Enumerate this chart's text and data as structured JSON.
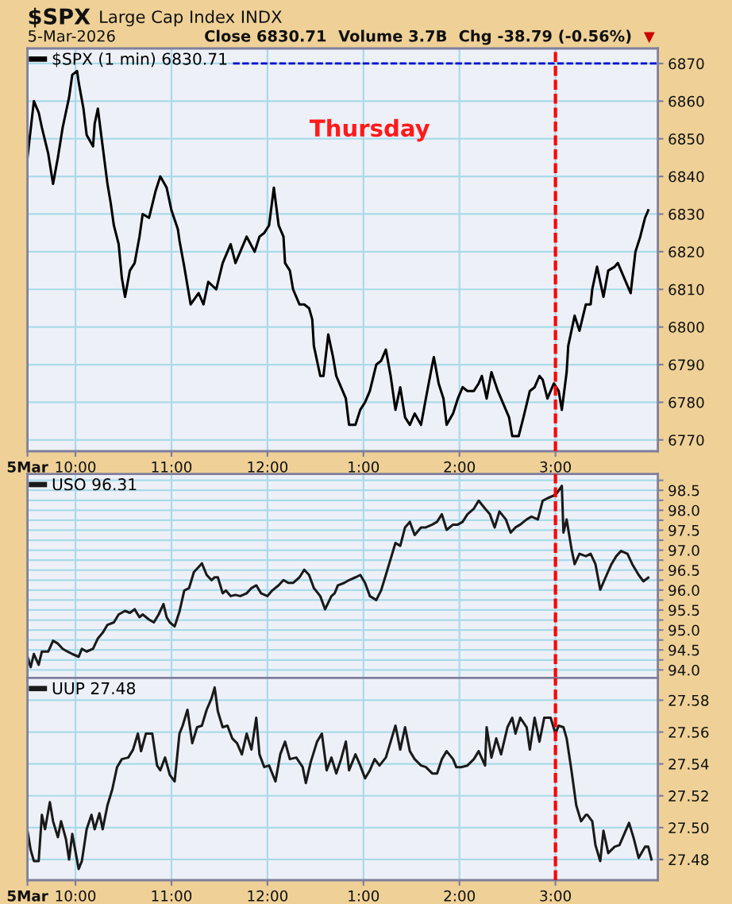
{
  "chart_data": [
    {
      "type": "line",
      "title": "$SPX",
      "subtitle": "Large Cap Index INDX",
      "annotations": [
        "5-Mar-2026",
        "Close 6830.71",
        "Volume 3.7B",
        "Chg -38.79 (-0.56%)",
        "▼",
        "Thursday"
      ],
      "x": [
        "2026-03-05T09:30",
        "2026-03-05T09:34",
        "2026-03-05T09:37",
        "2026-03-05T09:39",
        "2026-03-05T09:43",
        "2026-03-05T09:46",
        "2026-03-05T09:49",
        "2026-03-05T09:52",
        "2026-03-05T09:56",
        "2026-03-05T09:58",
        "2026-03-05T10:01",
        "2026-03-05T10:02",
        "2026-03-05T10:05",
        "2026-03-05T10:07",
        "2026-03-05T10:11",
        "2026-03-05T10:12",
        "2026-03-05T10:14",
        "2026-03-05T10:17",
        "2026-03-05T10:20",
        "2026-03-05T10:22",
        "2026-03-05T10:24",
        "2026-03-05T10:27",
        "2026-03-05T10:29",
        "2026-03-05T10:31",
        "2026-03-05T10:34",
        "2026-03-05T10:37",
        "2026-03-05T10:40",
        "2026-03-05T10:42",
        "2026-03-05T10:46",
        "2026-03-05T10:50",
        "2026-03-05T10:53",
        "2026-03-05T10:57",
        "2026-03-05T11:00",
        "2026-03-05T11:04",
        "2026-03-05T11:05",
        "2026-03-05T11:08",
        "2026-03-05T11:12",
        "2026-03-05T11:17",
        "2026-03-05T11:20",
        "2026-03-05T11:23",
        "2026-03-05T11:28",
        "2026-03-05T11:32",
        "2026-03-05T11:37",
        "2026-03-05T11:40",
        "2026-03-05T11:43",
        "2026-03-05T11:47",
        "2026-03-05T11:52",
        "2026-03-05T11:55",
        "2026-03-05T11:58",
        "2026-03-05T12:01",
        "2026-03-05T12:04",
        "2026-03-05T12:07",
        "2026-03-05T12:10",
        "2026-03-05T12:11",
        "2026-03-05T12:14",
        "2026-03-05T12:16",
        "2026-03-05T12:20",
        "2026-03-05T12:23",
        "2026-03-05T12:26",
        "2026-03-05T12:28",
        "2026-03-05T12:29",
        "2026-03-05T12:33",
        "2026-03-05T12:35",
        "2026-03-05T12:38",
        "2026-03-05T12:41",
        "2026-03-05T12:43",
        "2026-03-05T12:46",
        "2026-03-05T12:49",
        "2026-03-05T12:51",
        "2026-03-05T12:55",
        "2026-03-05T12:58",
        "2026-03-05T13:01",
        "2026-03-05T13:04",
        "2026-03-05T13:08",
        "2026-03-05T13:11",
        "2026-03-05T13:14",
        "2026-03-05T13:17",
        "2026-03-05T13:20",
        "2026-03-05T13:23",
        "2026-03-05T13:26",
        "2026-03-05T13:29",
        "2026-03-05T13:32",
        "2026-03-05T13:36",
        "2026-03-05T13:39",
        "2026-03-05T13:43",
        "2026-03-05T13:44",
        "2026-03-05T13:47",
        "2026-03-05T13:50",
        "2026-03-05T13:52",
        "2026-03-05T13:56",
        "2026-03-05T13:59",
        "2026-03-05T14:02",
        "2026-03-05T14:05",
        "2026-03-05T14:09",
        "2026-03-05T14:12",
        "2026-03-05T14:14",
        "2026-03-05T14:17",
        "2026-03-05T14:20",
        "2026-03-05T14:24",
        "2026-03-05T14:27",
        "2026-03-05T14:31",
        "2026-03-05T14:33",
        "2026-03-05T14:37",
        "2026-03-05T14:40",
        "2026-03-05T14:44",
        "2026-03-05T14:47",
        "2026-03-05T14:50",
        "2026-03-05T14:52",
        "2026-03-05T14:55",
        "2026-03-05T14:59",
        "2026-03-05T15:02",
        "2026-03-05T15:04",
        "2026-03-05T15:07",
        "2026-03-05T15:08",
        "2026-03-05T15:12",
        "2026-03-05T15:15",
        "2026-03-05T15:19",
        "2026-03-05T15:22",
        "2026-03-05T15:23",
        "2026-03-05T15:26",
        "2026-03-05T15:30",
        "2026-03-05T15:33",
        "2026-03-05T15:37",
        "2026-03-05T15:39",
        "2026-03-05T15:43",
        "2026-03-05T15:47",
        "2026-03-05T15:50",
        "2026-03-05T15:53",
        "2026-03-05T15:56",
        "2026-03-05T15:58"
      ],
      "series": [
        {
          "name": "$SPX (1 min) 6830.71",
          "color": "#000000",
          "values": [
            6845,
            6860,
            6857,
            6853,
            6846,
            6838,
            6845,
            6853,
            6861,
            6867,
            6868,
            6865,
            6858,
            6851,
            6848,
            6854,
            6858,
            6848,
            6838,
            6833,
            6827,
            6822,
            6813,
            6808,
            6815,
            6817,
            6824,
            6830,
            6829,
            6836,
            6840,
            6837,
            6831,
            6826,
            6823,
            6816,
            6806,
            6809,
            6806,
            6812,
            6810,
            6817,
            6822,
            6817,
            6820,
            6824,
            6820,
            6824,
            6825,
            6827,
            6837,
            6827,
            6824,
            6817,
            6815,
            6810,
            6806,
            6806,
            6805,
            6802,
            6795,
            6787,
            6787,
            6798,
            6792,
            6787,
            6784,
            6781,
            6774,
            6774,
            6778,
            6780,
            6783,
            6790,
            6791,
            6794,
            6787,
            6778,
            6784,
            6776,
            6774,
            6777,
            6774,
            6781,
            6790,
            6792,
            6785,
            6781,
            6774,
            6777,
            6781,
            6784,
            6783,
            6783,
            6785,
            6787,
            6781,
            6788,
            6783,
            6780,
            6776,
            6771,
            6771,
            6776,
            6783,
            6784,
            6787,
            6786,
            6781,
            6785,
            6783,
            6778,
            6788,
            6795,
            6803,
            6799,
            6806,
            6806,
            6810,
            6816,
            6808,
            6815,
            6816,
            6817,
            6813,
            6809,
            6820,
            6824,
            6829,
            6831
          ]
        }
      ],
      "xlim": [
        "2026-03-05T09:30",
        "2026-03-05T16:04"
      ],
      "ylim": [
        6767,
        6874
      ],
      "xticks": [
        {
          "value": "2026-03-05T09:30",
          "label": "5Mar"
        },
        {
          "value": "2026-03-05T10:00",
          "label": "10:00"
        },
        {
          "value": "2026-03-05T11:00",
          "label": "11:00"
        },
        {
          "value": "2026-03-05T12:00",
          "label": "12:00"
        },
        {
          "value": "2026-03-05T13:00",
          "label": "1:00"
        },
        {
          "value": "2026-03-05T14:00",
          "label": "2:00"
        },
        {
          "value": "2026-03-05T15:00",
          "label": "3:00"
        }
      ],
      "yticks": [
        6770,
        6780,
        6790,
        6800,
        6810,
        6820,
        6830,
        6840,
        6850,
        6860,
        6870
      ],
      "grid": true,
      "legend": "top left",
      "ref_lines": [
        {
          "axis": "x",
          "value": "2026-03-05T15:00",
          "color": "#ff0000",
          "line_style": "dashed"
        },
        {
          "axis": "y",
          "value": 6870,
          "color": "#0000cc",
          "line_style": "dashed"
        }
      ]
    },
    {
      "type": "line",
      "x": [
        "2026-03-05T09:30",
        "2026-03-05T09:32",
        "2026-03-05T09:34",
        "2026-03-05T09:37",
        "2026-03-05T09:39",
        "2026-03-05T09:43",
        "2026-03-05T09:46",
        "2026-03-05T09:49",
        "2026-03-05T09:52",
        "2026-03-05T09:55",
        "2026-03-05T09:58",
        "2026-03-05T10:02",
        "2026-03-05T10:04",
        "2026-03-05T10:07",
        "2026-03-05T10:11",
        "2026-03-05T10:14",
        "2026-03-05T10:17",
        "2026-03-05T10:20",
        "2026-03-05T10:24",
        "2026-03-05T10:27",
        "2026-03-05T10:31",
        "2026-03-05T10:34",
        "2026-03-05T10:37",
        "2026-03-05T10:40",
        "2026-03-05T10:42",
        "2026-03-05T10:46",
        "2026-03-05T10:49",
        "2026-03-05T10:52",
        "2026-03-05T10:55",
        "2026-03-05T10:57",
        "2026-03-05T10:59",
        "2026-03-05T11:02",
        "2026-03-05T11:05",
        "2026-03-05T11:08",
        "2026-03-05T11:11",
        "2026-03-05T11:14",
        "2026-03-05T11:17",
        "2026-03-05T11:19",
        "2026-03-05T11:22",
        "2026-03-05T11:25",
        "2026-03-05T11:27",
        "2026-03-05T11:29",
        "2026-03-05T11:32",
        "2026-03-05T11:34",
        "2026-03-05T11:37",
        "2026-03-05T11:40",
        "2026-03-05T11:43",
        "2026-03-05T11:47",
        "2026-03-05T11:50",
        "2026-03-05T11:53",
        "2026-03-05T11:56",
        "2026-03-05T12:00",
        "2026-03-05T12:03",
        "2026-03-05T12:07",
        "2026-03-05T12:10",
        "2026-03-05T12:13",
        "2026-03-05T12:16",
        "2026-03-05T12:20",
        "2026-03-05T12:23",
        "2026-03-05T12:26",
        "2026-03-05T12:29",
        "2026-03-05T12:33",
        "2026-03-05T12:36",
        "2026-03-05T12:40",
        "2026-03-05T12:42",
        "2026-03-05T12:44",
        "2026-03-05T12:48",
        "2026-03-05T12:51",
        "2026-03-05T12:55",
        "2026-03-05T12:58",
        "2026-03-05T13:01",
        "2026-03-05T13:04",
        "2026-03-05T13:08",
        "2026-03-05T13:11",
        "2026-03-05T13:14",
        "2026-03-05T13:17",
        "2026-03-05T13:20",
        "2026-03-05T13:23",
        "2026-03-05T13:26",
        "2026-03-05T13:29",
        "2026-03-05T13:32",
        "2026-03-05T13:36",
        "2026-03-05T13:39",
        "2026-03-05T13:43",
        "2026-03-05T13:46",
        "2026-03-05T13:49",
        "2026-03-05T13:52",
        "2026-03-05T13:56",
        "2026-03-05T13:59",
        "2026-03-05T14:02",
        "2026-03-05T14:05",
        "2026-03-05T14:09",
        "2026-03-05T14:12",
        "2026-03-05T14:16",
        "2026-03-05T14:19",
        "2026-03-05T14:22",
        "2026-03-05T14:25",
        "2026-03-05T14:29",
        "2026-03-05T14:32",
        "2026-03-05T14:35",
        "2026-03-05T14:38",
        "2026-03-05T14:42",
        "2026-03-05T14:45",
        "2026-03-05T14:49",
        "2026-03-05T14:52",
        "2026-03-05T14:55",
        "2026-03-05T14:59",
        "2026-03-05T15:01",
        "2026-03-05T15:04",
        "2026-03-05T15:05",
        "2026-03-05T15:07",
        "2026-03-05T15:10",
        "2026-03-05T15:12",
        "2026-03-05T15:15",
        "2026-03-05T15:19",
        "2026-03-05T15:22",
        "2026-03-05T15:25",
        "2026-03-05T15:28",
        "2026-03-05T15:32",
        "2026-03-05T15:35",
        "2026-03-05T15:38",
        "2026-03-05T15:41",
        "2026-03-05T15:45",
        "2026-03-05T15:48",
        "2026-03-05T15:52",
        "2026-03-05T15:55",
        "2026-03-05T15:58"
      ],
      "series": [
        {
          "name": "USO 96.31",
          "color": "#1a1a1a",
          "values": [
            94.33,
            94.07,
            94.4,
            94.13,
            94.46,
            94.46,
            94.73,
            94.66,
            94.53,
            94.46,
            94.4,
            94.33,
            94.53,
            94.46,
            94.53,
            94.79,
            94.93,
            95.13,
            95.19,
            95.39,
            95.48,
            95.43,
            95.52,
            95.32,
            95.39,
            95.26,
            95.19,
            95.39,
            95.65,
            95.32,
            95.19,
            95.09,
            95.46,
            95.99,
            96.05,
            96.45,
            96.58,
            96.67,
            96.38,
            96.25,
            96.32,
            96.32,
            95.92,
            95.99,
            95.85,
            95.88,
            95.85,
            95.92,
            96.05,
            96.12,
            95.92,
            95.85,
            95.99,
            96.12,
            96.25,
            96.18,
            96.18,
            96.32,
            96.51,
            96.38,
            96.05,
            95.85,
            95.52,
            95.85,
            95.92,
            96.12,
            96.18,
            96.25,
            96.32,
            96.38,
            96.18,
            95.85,
            95.75,
            95.99,
            96.38,
            96.78,
            97.18,
            97.11,
            97.57,
            97.71,
            97.38,
            97.57,
            97.57,
            97.64,
            97.71,
            97.9,
            97.51,
            97.64,
            97.64,
            97.71,
            97.9,
            98.04,
            98.24,
            98.04,
            97.9,
            97.57,
            97.97,
            97.77,
            97.44,
            97.57,
            97.64,
            97.77,
            97.84,
            97.77,
            98.24,
            98.3,
            98.37,
            98.43,
            98.61,
            97.44,
            97.77,
            97.04,
            96.65,
            96.91,
            96.85,
            96.91,
            96.65,
            96.01,
            96.38,
            96.65,
            96.85,
            96.98,
            96.91,
            96.65,
            96.38,
            96.22,
            96.31
          ]
        }
      ],
      "xlim": [
        "2026-03-05T09:30",
        "2026-03-05T16:04"
      ],
      "ylim": [
        93.8,
        98.91
      ],
      "xticks": [
        {
          "value": "2026-03-05T09:30",
          "label": null
        },
        {
          "value": "2026-03-05T10:00",
          "label": null
        },
        {
          "value": "2026-03-05T11:00",
          "label": null
        },
        {
          "value": "2026-03-05T12:00",
          "label": null
        },
        {
          "value": "2026-03-05T13:00",
          "label": null
        },
        {
          "value": "2026-03-05T14:00",
          "label": null
        },
        {
          "value": "2026-03-05T15:00",
          "label": null
        }
      ],
      "yticks": [
        {
          "value": 94.0,
          "label": "94.0"
        },
        {
          "value": 94.25,
          "label": null
        },
        94.5,
        {
          "value": 94.75,
          "label": null
        },
        {
          "value": 95.0,
          "label": "95.0"
        },
        {
          "value": 95.25,
          "label": null
        },
        95.5,
        {
          "value": 95.75,
          "label": null
        },
        {
          "value": 96.0,
          "label": "96.0"
        },
        {
          "value": 96.25,
          "label": null
        },
        96.5,
        {
          "value": 96.75,
          "label": null
        },
        {
          "value": 97.0,
          "label": "97.0"
        },
        {
          "value": 97.25,
          "label": null
        },
        97.5,
        {
          "value": 97.75,
          "label": null
        },
        {
          "value": 98.0,
          "label": "98.0"
        },
        {
          "value": 98.25,
          "label": null
        },
        98.5,
        {
          "value": 98.75,
          "label": null
        }
      ],
      "tick_labels": "y",
      "grid": true,
      "legend": "top left",
      "ref_lines": [
        {
          "axis": "x",
          "value": "2026-03-05T15:00",
          "color": "#ff0000",
          "line_style": "dashed"
        }
      ]
    },
    {
      "type": "line",
      "x": [
        "2026-03-05T09:30",
        "2026-03-05T09:32",
        "2026-03-05T09:34",
        "2026-03-05T09:37",
        "2026-03-05T09:39",
        "2026-03-05T09:41",
        "2026-03-05T09:44",
        "2026-03-05T09:46",
        "2026-03-05T09:49",
        "2026-03-05T09:51",
        "2026-03-05T09:54",
        "2026-03-05T09:56",
        "2026-03-05T09:58",
        "2026-03-05T10:02",
        "2026-03-05T10:04",
        "2026-03-05T10:07",
        "2026-03-05T10:10",
        "2026-03-05T10:12",
        "2026-03-05T10:15",
        "2026-03-05T10:17",
        "2026-03-05T10:20",
        "2026-03-05T10:23",
        "2026-03-05T10:26",
        "2026-03-05T10:29",
        "2026-03-05T10:33",
        "2026-03-05T10:36",
        "2026-03-05T10:39",
        "2026-03-05T10:41",
        "2026-03-05T10:44",
        "2026-03-05T10:48",
        "2026-03-05T10:51",
        "2026-03-05T10:53",
        "2026-03-05T10:56",
        "2026-03-05T10:59",
        "2026-03-05T11:02",
        "2026-03-05T11:05",
        "2026-03-05T11:07",
        "2026-03-05T11:10",
        "2026-03-05T11:13",
        "2026-03-05T11:16",
        "2026-03-05T11:19",
        "2026-03-05T11:22",
        "2026-03-05T11:25",
        "2026-03-05T11:27",
        "2026-03-05T11:29",
        "2026-03-05T11:32",
        "2026-03-05T11:35",
        "2026-03-05T11:38",
        "2026-03-05T11:41",
        "2026-03-05T11:44",
        "2026-03-05T11:47",
        "2026-03-05T11:50",
        "2026-03-05T11:53",
        "2026-03-05T11:55",
        "2026-03-05T11:58",
        "2026-03-05T12:01",
        "2026-03-05T12:05",
        "2026-03-05T12:08",
        "2026-03-05T12:11",
        "2026-03-05T12:14",
        "2026-03-05T12:18",
        "2026-03-05T12:22",
        "2026-03-05T12:24",
        "2026-03-05T12:27",
        "2026-03-05T12:31",
        "2026-03-05T12:34",
        "2026-03-05T12:37",
        "2026-03-05T12:40",
        "2026-03-05T12:43",
        "2026-03-05T12:46",
        "2026-03-05T12:49",
        "2026-03-05T12:51",
        "2026-03-05T12:55",
        "2026-03-05T12:58",
        "2026-03-05T13:01",
        "2026-03-05T13:04",
        "2026-03-05T13:07",
        "2026-03-05T13:10",
        "2026-03-05T13:14",
        "2026-03-05T13:17",
        "2026-03-05T13:20",
        "2026-03-05T13:23",
        "2026-03-05T13:26",
        "2026-03-05T13:29",
        "2026-03-05T13:32",
        "2026-03-05T13:36",
        "2026-03-05T13:39",
        "2026-03-05T13:43",
        "2026-03-05T13:46",
        "2026-03-05T13:49",
        "2026-03-05T13:52",
        "2026-03-05T13:56",
        "2026-03-05T13:58",
        "2026-03-05T14:01",
        "2026-03-05T14:05",
        "2026-03-05T14:09",
        "2026-03-05T14:12",
        "2026-03-05T14:16",
        "2026-03-05T14:17",
        "2026-03-05T14:20",
        "2026-03-05T14:23",
        "2026-03-05T14:26",
        "2026-03-05T14:30",
        "2026-03-05T14:33",
        "2026-03-05T14:35",
        "2026-03-05T14:38",
        "2026-03-05T14:42",
        "2026-03-05T14:44",
        "2026-03-05T14:47",
        "2026-03-05T14:50",
        "2026-03-05T14:53",
        "2026-03-05T14:57",
        "2026-03-05T15:00",
        "2026-03-05T15:02",
        "2026-03-05T15:05",
        "2026-03-05T15:07",
        "2026-03-05T15:10",
        "2026-03-05T15:13",
        "2026-03-05T15:16",
        "2026-03-05T15:19",
        "2026-03-05T15:20",
        "2026-03-05T15:23",
        "2026-03-05T15:25",
        "2026-03-05T15:28",
        "2026-03-05T15:30",
        "2026-03-05T15:33",
        "2026-03-05T15:37",
        "2026-03-05T15:40",
        "2026-03-05T15:43",
        "2026-03-05T15:46",
        "2026-03-05T15:49",
        "2026-03-05T15:52",
        "2026-03-05T15:56",
        "2026-03-05T15:58",
        "2026-03-05T16:00"
      ],
      "series": [
        {
          "name": "UUP 27.48",
          "color": "#1a1a1a",
          "values": [
            27.498,
            27.486,
            27.479,
            27.479,
            27.508,
            27.499,
            27.516,
            27.504,
            27.494,
            27.504,
            27.493,
            27.48,
            27.496,
            27.474,
            27.479,
            27.499,
            27.508,
            27.499,
            27.509,
            27.499,
            27.514,
            27.524,
            27.538,
            27.543,
            27.544,
            27.549,
            27.559,
            27.548,
            27.559,
            27.559,
            27.539,
            27.536,
            27.544,
            27.533,
            27.529,
            27.559,
            27.564,
            27.574,
            27.553,
            27.563,
            27.564,
            27.574,
            27.581,
            27.588,
            27.573,
            27.563,
            27.564,
            27.556,
            27.553,
            27.546,
            27.559,
            27.549,
            27.569,
            27.546,
            27.538,
            27.539,
            27.529,
            27.546,
            27.554,
            27.543,
            27.544,
            27.538,
            27.528,
            27.541,
            27.554,
            27.559,
            27.536,
            27.544,
            27.534,
            27.543,
            27.554,
            27.536,
            27.546,
            27.539,
            27.531,
            27.536,
            27.543,
            27.539,
            27.544,
            27.554,
            27.564,
            27.549,
            27.563,
            27.548,
            27.543,
            27.539,
            27.538,
            27.534,
            27.534,
            27.543,
            27.548,
            27.543,
            27.538,
            27.538,
            27.539,
            27.543,
            27.548,
            27.539,
            27.563,
            27.544,
            27.556,
            27.546,
            27.563,
            27.569,
            27.559,
            27.569,
            27.563,
            27.549,
            27.569,
            27.554,
            27.569,
            27.569,
            27.559,
            27.564,
            27.563,
            27.556,
            27.536,
            27.514,
            27.504,
            27.508,
            27.508,
            27.504,
            27.489,
            27.479,
            27.498,
            27.484,
            27.488,
            27.489,
            27.496,
            27.503,
            27.493,
            27.481,
            27.488,
            27.488,
            27.48
          ]
        }
      ],
      "xlim": [
        "2026-03-05T09:30",
        "2026-03-05T16:04"
      ],
      "ylim": [
        27.467,
        27.594
      ],
      "xticks": [
        {
          "value": "2026-03-05T09:30",
          "label": "5Mar"
        },
        {
          "value": "2026-03-05T10:00",
          "label": "10:00"
        },
        {
          "value": "2026-03-05T11:00",
          "label": "11:00"
        },
        {
          "value": "2026-03-05T12:00",
          "label": "12:00"
        },
        {
          "value": "2026-03-05T13:00",
          "label": "1:00"
        },
        {
          "value": "2026-03-05T14:00",
          "label": "2:00"
        },
        {
          "value": "2026-03-05T15:00",
          "label": "3:00"
        }
      ],
      "yticks": [
        27.48,
        {
          "value": 27.5,
          "label": "27.50"
        },
        27.52,
        27.54,
        27.56,
        27.58
      ],
      "grid": true,
      "legend": "top left",
      "ref_lines": [
        {
          "axis": "x",
          "value": "2026-03-05T15:00",
          "color": "#ff0000",
          "line_style": "dashed"
        }
      ]
    }
  ]
}
